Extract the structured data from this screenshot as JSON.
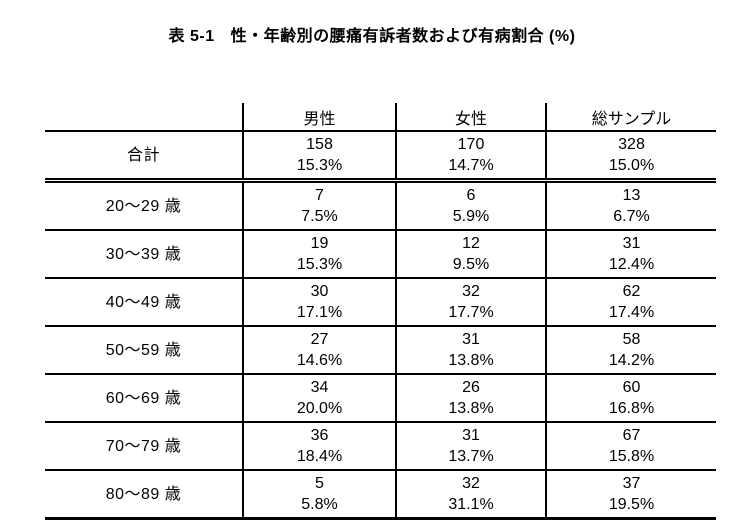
{
  "title": {
    "label": "表 5-1",
    "text": "性・年齢別の腰痛有訴者数および有病割合 (%)"
  },
  "table": {
    "columns": [
      "",
      "男性",
      "女性",
      "総サンプル"
    ],
    "total_row": {
      "label": "合計",
      "cells": [
        {
          "count": "158",
          "pct": "15.3%"
        },
        {
          "count": "170",
          "pct": "14.7%"
        },
        {
          "count": "328",
          "pct": "15.0%"
        }
      ]
    },
    "rows": [
      {
        "label": "20〜29 歳",
        "cells": [
          {
            "count": "7",
            "pct": "7.5%"
          },
          {
            "count": "6",
            "pct": "5.9%"
          },
          {
            "count": "13",
            "pct": "6.7%"
          }
        ]
      },
      {
        "label": "30〜39 歳",
        "cells": [
          {
            "count": "19",
            "pct": "15.3%"
          },
          {
            "count": "12",
            "pct": "9.5%"
          },
          {
            "count": "31",
            "pct": "12.4%"
          }
        ]
      },
      {
        "label": "40〜49 歳",
        "cells": [
          {
            "count": "30",
            "pct": "17.1%"
          },
          {
            "count": "32",
            "pct": "17.7%"
          },
          {
            "count": "62",
            "pct": "17.4%"
          }
        ]
      },
      {
        "label": "50〜59 歳",
        "cells": [
          {
            "count": "27",
            "pct": "14.6%"
          },
          {
            "count": "31",
            "pct": "13.8%"
          },
          {
            "count": "58",
            "pct": "14.2%"
          }
        ]
      },
      {
        "label": "60〜69 歳",
        "cells": [
          {
            "count": "34",
            "pct": "20.0%"
          },
          {
            "count": "26",
            "pct": "13.8%"
          },
          {
            "count": "60",
            "pct": "16.8%"
          }
        ]
      },
      {
        "label": "70〜79 歳",
        "cells": [
          {
            "count": "36",
            "pct": "18.4%"
          },
          {
            "count": "31",
            "pct": "13.7%"
          },
          {
            "count": "67",
            "pct": "15.8%"
          }
        ]
      },
      {
        "label": "80〜89 歳",
        "cells": [
          {
            "count": "5",
            "pct": "5.8%"
          },
          {
            "count": "32",
            "pct": "31.1%"
          },
          {
            "count": "37",
            "pct": "19.5%"
          }
        ]
      }
    ]
  },
  "colors": {
    "text": "#000000",
    "border": "#000000",
    "background": "#ffffff"
  }
}
